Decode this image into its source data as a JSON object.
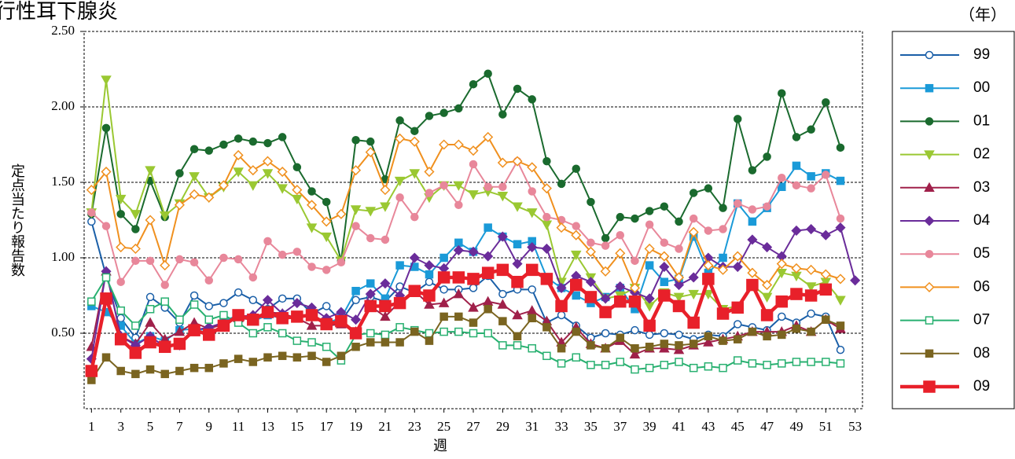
{
  "chart_data": {
    "type": "line",
    "title": "行性耳下腺炎",
    "y_label": "定点当たり報告数",
    "x_label": "週",
    "legend_title": "（年）",
    "legend": "right",
    "grid": true,
    "x": [
      1,
      2,
      3,
      4,
      5,
      6,
      7,
      8,
      9,
      10,
      11,
      12,
      13,
      14,
      15,
      16,
      17,
      18,
      19,
      20,
      21,
      22,
      23,
      24,
      25,
      26,
      27,
      28,
      29,
      30,
      31,
      32,
      33,
      34,
      35,
      36,
      37,
      38,
      39,
      40,
      41,
      42,
      43,
      44,
      45,
      46,
      47,
      48,
      49,
      50,
      51,
      52,
      53
    ],
    "xlim": [
      0.5,
      53.5
    ],
    "xticks": [
      1,
      3,
      5,
      7,
      9,
      11,
      13,
      15,
      17,
      19,
      21,
      23,
      25,
      27,
      29,
      31,
      33,
      35,
      37,
      39,
      41,
      43,
      45,
      47,
      49,
      51,
      53
    ],
    "ylim": [
      0,
      2.5
    ],
    "yticks": [
      {
        "value": 0.5,
        "label": "0.50"
      },
      {
        "value": 1,
        "label": "1.00"
      },
      {
        "value": 1.5,
        "label": "1.50"
      },
      {
        "value": 2,
        "label": "2.00"
      },
      {
        "value": 2.5,
        "label": "2.50"
      }
    ],
    "series": [
      {
        "name": "99",
        "color": "#1a5fa8",
        "marker": "circle-open",
        "values": [
          1.24,
          0.88,
          0.6,
          0.47,
          0.74,
          0.67,
          0.57,
          0.75,
          0.68,
          0.7,
          0.77,
          0.72,
          0.66,
          0.73,
          0.73,
          0.63,
          0.68,
          0.58,
          0.72,
          0.74,
          0.71,
          0.81,
          0.77,
          0.84,
          0.79,
          0.79,
          0.8,
          0.88,
          0.76,
          0.79,
          0.79,
          0.57,
          0.62,
          0.55,
          0.47,
          0.5,
          0.49,
          0.52,
          0.49,
          0.5,
          0.49,
          0.46,
          0.49,
          0.48,
          0.56,
          0.54,
          0.52,
          0.61,
          0.57,
          0.63,
          0.61,
          0.39,
          null
        ]
      },
      {
        "name": "00",
        "color": "#1a9ad8",
        "marker": "square",
        "values": [
          0.68,
          0.64,
          0.55,
          0.43,
          0.48,
          0.45,
          0.52,
          0.53,
          0.52,
          0.58,
          0.62,
          0.58,
          0.62,
          0.6,
          0.62,
          0.61,
          0.57,
          0.6,
          0.78,
          0.83,
          0.73,
          0.95,
          0.94,
          0.89,
          1.0,
          1.1,
          1.04,
          1.2,
          1.14,
          1.09,
          1.11,
          0.87,
          0.8,
          0.75,
          0.7,
          0.74,
          0.8,
          0.66,
          0.95,
          0.84,
          0.86,
          1.14,
          0.9,
          1.0,
          1.36,
          1.24,
          1.33,
          1.47,
          1.61,
          1.54,
          1.56,
          1.51,
          null
        ]
      },
      {
        "name": "01",
        "color": "#1a6a2e",
        "marker": "circle",
        "values": [
          1.29,
          1.86,
          1.29,
          1.19,
          1.51,
          1.27,
          1.56,
          1.72,
          1.71,
          1.75,
          1.79,
          1.77,
          1.76,
          1.8,
          1.6,
          1.44,
          1.37,
          0.98,
          1.78,
          1.77,
          1.52,
          1.91,
          1.84,
          1.94,
          1.96,
          1.99,
          2.15,
          2.22,
          1.95,
          2.12,
          2.05,
          1.64,
          1.49,
          1.59,
          1.37,
          1.13,
          1.27,
          1.26,
          1.31,
          1.34,
          1.24,
          1.43,
          1.46,
          1.33,
          1.92,
          1.58,
          1.67,
          2.09,
          1.8,
          1.85,
          2.03,
          1.73,
          null
        ]
      },
      {
        "name": "02",
        "color": "#9ac832",
        "marker": "triangle-down",
        "values": [
          1.3,
          2.18,
          1.39,
          1.29,
          1.58,
          1.28,
          1.36,
          1.54,
          1.4,
          1.47,
          1.57,
          1.48,
          1.56,
          1.46,
          1.39,
          1.2,
          1.14,
          0.98,
          1.32,
          1.31,
          1.34,
          1.51,
          1.56,
          1.4,
          1.48,
          1.48,
          1.42,
          1.44,
          1.41,
          1.34,
          1.3,
          1.22,
          0.84,
          1.02,
          0.87,
          0.73,
          0.75,
          0.8,
          0.68,
          0.77,
          0.74,
          0.76,
          0.76,
          0.66,
          0.68,
          0.82,
          0.74,
          0.9,
          0.88,
          0.81,
          0.84,
          0.72,
          null
        ]
      },
      {
        "name": "03",
        "color": "#a0204a",
        "marker": "triangle-up",
        "values": [
          0.41,
          0.91,
          0.48,
          0.43,
          0.57,
          0.46,
          0.51,
          0.57,
          0.53,
          0.56,
          0.6,
          0.59,
          0.64,
          0.63,
          0.6,
          0.55,
          0.55,
          0.56,
          0.51,
          0.68,
          0.61,
          0.71,
          0.78,
          0.69,
          0.7,
          0.76,
          0.67,
          0.71,
          0.69,
          0.62,
          0.65,
          0.58,
          0.44,
          0.54,
          0.43,
          0.4,
          0.45,
          0.36,
          0.4,
          0.4,
          0.39,
          0.42,
          0.44,
          0.46,
          0.48,
          0.51,
          0.51,
          0.51,
          0.55,
          0.51,
          0.59,
          0.53,
          null
        ]
      },
      {
        "name": "04",
        "color": "#6a2c9a",
        "marker": "diamond",
        "values": [
          0.33,
          0.91,
          0.48,
          0.42,
          0.48,
          0.41,
          0.42,
          0.52,
          0.54,
          0.57,
          0.61,
          0.62,
          0.72,
          0.63,
          0.7,
          0.67,
          0.6,
          0.64,
          0.59,
          0.76,
          0.83,
          0.75,
          1.0,
          0.95,
          0.93,
          1.05,
          1.04,
          1.01,
          1.14,
          0.96,
          1.07,
          1.06,
          0.8,
          0.88,
          0.84,
          0.73,
          0.81,
          0.77,
          0.73,
          0.94,
          0.82,
          0.87,
          1.0,
          0.94,
          0.94,
          1.12,
          1.07,
          1.01,
          1.18,
          1.19,
          1.15,
          1.2,
          0.85
        ]
      },
      {
        "name": "05",
        "color": "#e8879a",
        "marker": "circle",
        "values": [
          1.3,
          1.21,
          0.84,
          0.98,
          0.98,
          0.82,
          0.99,
          0.97,
          0.85,
          1.0,
          0.99,
          0.87,
          1.11,
          1.02,
          1.04,
          0.94,
          0.92,
          0.97,
          1.21,
          1.13,
          1.12,
          1.4,
          1.27,
          1.43,
          1.48,
          1.35,
          1.62,
          1.47,
          1.47,
          1.64,
          1.44,
          1.27,
          1.25,
          1.21,
          1.1,
          1.08,
          1.15,
          0.98,
          1.22,
          1.1,
          1.06,
          1.26,
          1.18,
          1.19,
          1.36,
          1.32,
          1.34,
          1.53,
          1.48,
          1.46,
          1.55,
          1.26,
          null
        ]
      },
      {
        "name": "06",
        "color": "#f0901e",
        "marker": "diamond-open",
        "values": [
          1.45,
          1.57,
          1.07,
          1.06,
          1.25,
          0.95,
          1.35,
          1.42,
          1.4,
          1.48,
          1.68,
          1.58,
          1.64,
          1.57,
          1.45,
          1.35,
          1.24,
          1.29,
          1.58,
          1.7,
          1.45,
          1.79,
          1.77,
          1.57,
          1.75,
          1.75,
          1.71,
          1.8,
          1.63,
          1.64,
          1.6,
          1.46,
          1.2,
          1.15,
          1.04,
          0.91,
          1.03,
          0.8,
          1.06,
          1.01,
          0.87,
          1.17,
          0.95,
          0.92,
          1.01,
          0.9,
          0.82,
          0.96,
          0.93,
          0.92,
          0.89,
          0.86,
          null
        ]
      },
      {
        "name": "07",
        "color": "#28b070",
        "marker": "square-open",
        "values": [
          0.71,
          0.87,
          0.65,
          0.55,
          0.66,
          0.71,
          0.59,
          0.69,
          0.59,
          0.62,
          0.57,
          0.5,
          0.54,
          0.5,
          0.45,
          0.44,
          0.41,
          0.32,
          0.49,
          0.5,
          0.49,
          0.54,
          0.52,
          0.5,
          0.51,
          0.51,
          0.5,
          0.5,
          0.42,
          0.42,
          0.4,
          0.35,
          0.3,
          0.34,
          0.29,
          0.29,
          0.31,
          0.26,
          0.27,
          0.29,
          0.31,
          0.27,
          0.28,
          0.27,
          0.32,
          0.3,
          0.29,
          0.3,
          0.31,
          0.31,
          0.31,
          0.3,
          null
        ]
      },
      {
        "name": "08",
        "color": "#7a6420",
        "marker": "square",
        "values": [
          0.19,
          0.34,
          0.25,
          0.23,
          0.26,
          0.23,
          0.25,
          0.27,
          0.27,
          0.3,
          0.33,
          0.31,
          0.34,
          0.35,
          0.34,
          0.35,
          0.31,
          0.35,
          0.41,
          0.44,
          0.44,
          0.44,
          0.51,
          0.45,
          0.61,
          0.61,
          0.57,
          0.66,
          0.58,
          0.48,
          0.6,
          0.54,
          0.4,
          0.51,
          0.42,
          0.4,
          0.47,
          0.4,
          0.41,
          0.43,
          0.42,
          0.43,
          0.48,
          0.45,
          0.46,
          0.51,
          0.48,
          0.49,
          0.53,
          0.51,
          0.59,
          0.55,
          null
        ]
      },
      {
        "name": "09",
        "color": "#e8202a",
        "marker": "square-big",
        "values": [
          0.25,
          0.73,
          0.46,
          0.37,
          0.44,
          0.41,
          0.43,
          0.52,
          0.49,
          0.55,
          0.62,
          0.59,
          0.64,
          0.6,
          0.61,
          0.62,
          0.56,
          0.58,
          0.5,
          0.68,
          0.68,
          0.7,
          0.78,
          0.75,
          0.87,
          0.87,
          0.86,
          0.9,
          0.92,
          0.84,
          0.92,
          0.86,
          0.68,
          0.82,
          0.74,
          0.64,
          0.71,
          0.71,
          0.55,
          0.75,
          0.68,
          0.57,
          0.86,
          0.63,
          0.67,
          0.82,
          0.62,
          0.71,
          0.76,
          0.75,
          0.79,
          null,
          null
        ]
      }
    ]
  }
}
